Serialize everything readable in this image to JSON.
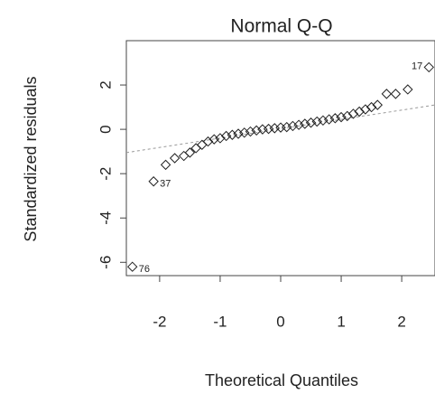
{
  "chart_data": {
    "type": "scatter",
    "title": "Normal Q-Q",
    "x_label": "Theoretical Quantiles",
    "y_label": "Standardized residuals",
    "x": [
      -2.45,
      -2.1,
      -1.9,
      -1.75,
      -1.6,
      -1.5,
      -1.4,
      -1.3,
      -1.2,
      -1.1,
      -1.0,
      -0.9,
      -0.8,
      -0.7,
      -0.6,
      -0.5,
      -0.4,
      -0.3,
      -0.2,
      -0.1,
      0,
      0.1,
      0.2,
      0.3,
      0.4,
      0.5,
      0.6,
      0.7,
      0.8,
      0.9,
      1.0,
      1.1,
      1.2,
      1.3,
      1.4,
      1.5,
      1.6,
      1.75,
      1.9,
      2.1,
      2.45
    ],
    "values": [
      -6.2,
      -2.35,
      -1.6,
      -1.3,
      -1.2,
      -1.05,
      -0.85,
      -0.7,
      -0.55,
      -0.45,
      -0.4,
      -0.3,
      -0.25,
      -0.2,
      -0.15,
      -0.1,
      -0.05,
      0,
      0.02,
      0.05,
      0.08,
      0.1,
      0.15,
      0.2,
      0.25,
      0.3,
      0.35,
      0.4,
      0.45,
      0.5,
      0.55,
      0.6,
      0.7,
      0.8,
      0.9,
      1.0,
      1.1,
      1.6,
      1.6,
      1.8,
      2.8
    ],
    "color": "#222222",
    "reference_line": {
      "x": [
        -2.55,
        2.55
      ],
      "y": [
        -1.05,
        1.1
      ],
      "color": "#999999"
    },
    "annotations": [
      {
        "text": "76",
        "x": -2.45,
        "y": -6.2
      },
      {
        "text": "37",
        "x": -2.1,
        "y": -2.35
      },
      {
        "text": "17",
        "x": 2.45,
        "y": 2.8
      }
    ],
    "xlim": [
      -2.55,
      2.55
    ],
    "ylim": [
      -6.6,
      4.0
    ],
    "xticks": [
      -2,
      -1,
      0,
      1,
      2
    ],
    "yticks": [
      -6,
      -4,
      -2,
      0,
      2
    ]
  }
}
